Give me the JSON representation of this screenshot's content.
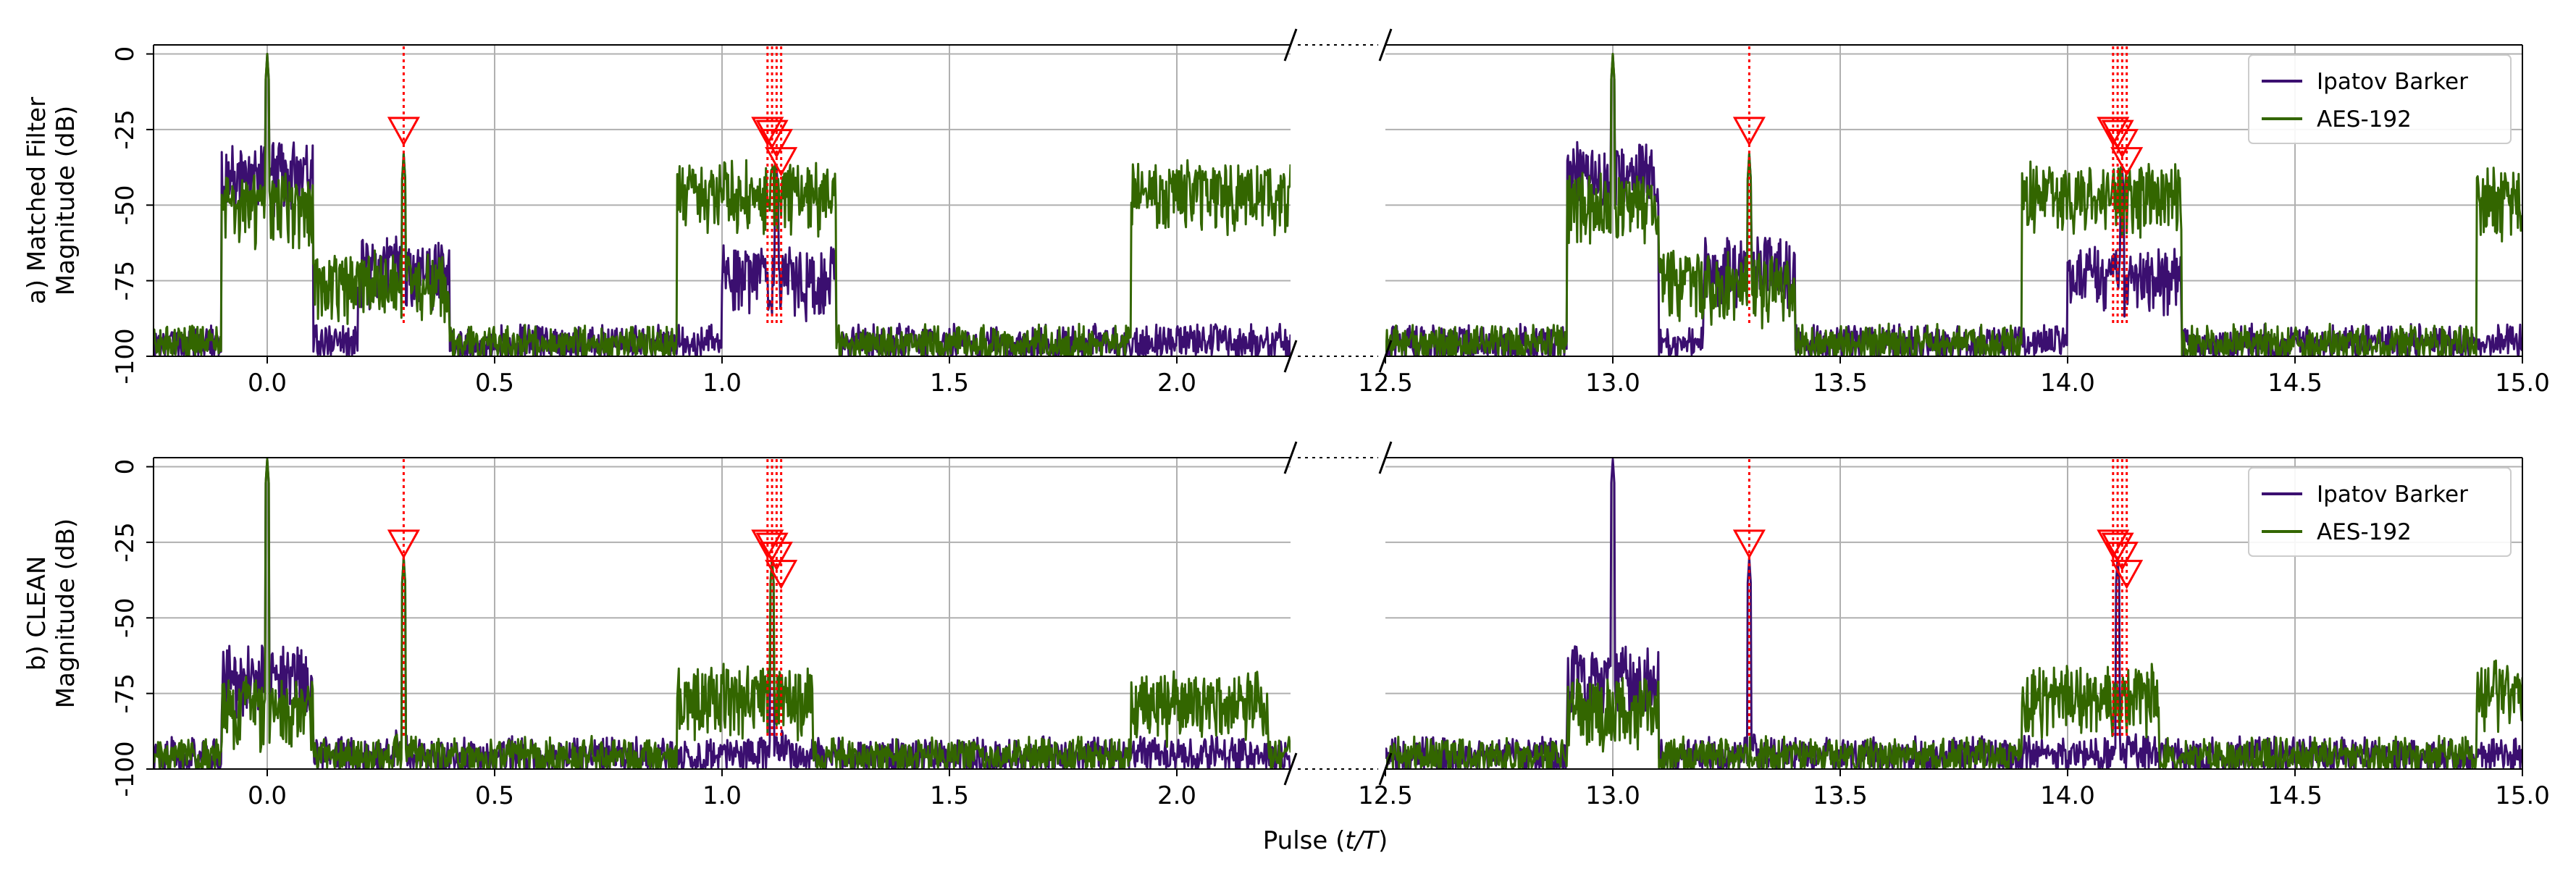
{
  "colors": {
    "ipatov": "#3b0f70",
    "aes": "#336600",
    "marker": "#ff0000",
    "grid": "#b0b0b0"
  },
  "figure": {
    "xlabel_prefix": "Pulse (",
    "xlabel_math": "t/T",
    "xlabel_suffix": ")"
  },
  "panels": [
    {
      "ylabel_line1": "a)  Matched Filter",
      "ylabel_line2": "Magnitude (dB)",
      "legend": [
        "Ipatov Barker",
        "AES-192"
      ]
    },
    {
      "ylabel_line1": "b)  CLEAN",
      "ylabel_line2": "Magnitude (dB)",
      "legend": [
        "Ipatov Barker",
        "AES-192"
      ]
    }
  ],
  "chart_data": [
    {
      "type": "line",
      "title": "",
      "xlabel": "Pulse (t/T)",
      "ylabel": "a)  Matched Filter Magnitude (dB)",
      "broken_x_axis": true,
      "xlim_segments": [
        [
          -0.25,
          2.25
        ],
        [
          12.5,
          15.0
        ]
      ],
      "xticks_left": [
        "0.0",
        "0.5",
        "1.0",
        "1.5",
        "2.0"
      ],
      "xticks_right": [
        "12.5",
        "13.0",
        "13.5",
        "14.0",
        "14.5",
        "15.0"
      ],
      "ylim": [
        -100,
        3
      ],
      "yticks": [
        "0",
        "-25",
        "-50",
        "-75",
        "-100"
      ],
      "grid": true,
      "legend_position": "top-right",
      "series": [
        {
          "name": "Ipatov Barker",
          "color": "#3b0f70",
          "features": [
            {
              "x_range": [
                -0.1,
                0.1
              ],
              "level": -32,
              "peak_x": 0.0,
              "peak_db": 0
            },
            {
              "x_range": [
                0.2,
                0.4
              ],
              "level": -63,
              "peak_x": 0.3,
              "peak_db": -33
            },
            {
              "x_range": [
                1.0,
                1.25
              ],
              "level": -66,
              "peak_x": 1.12,
              "peak_db": -38
            },
            {
              "x_range": [
                12.9,
                13.1
              ],
              "level": -32,
              "peak_x": 13.0,
              "peak_db": 0
            },
            {
              "x_range": [
                13.2,
                13.4
              ],
              "level": -63,
              "peak_x": 13.3,
              "peak_db": -33
            },
            {
              "x_range": [
                14.0,
                14.25
              ],
              "level": -66,
              "peak_x": 14.12,
              "peak_db": -38
            }
          ],
          "noise_floor_db": -92
        },
        {
          "name": "AES-192",
          "color": "#336600",
          "features": [
            {
              "x_range": [
                -0.1,
                0.1
              ],
              "level": -42,
              "peak_x": 0.0,
              "peak_db": 0
            },
            {
              "x_range": [
                0.1,
                0.4
              ],
              "level": -68,
              "peak_x": 0.3,
              "peak_db": -33
            },
            {
              "x_range": [
                0.9,
                1.25
              ],
              "level": -38
            },
            {
              "x_range": [
                1.9,
                2.25
              ],
              "level": -38
            },
            {
              "x_range": [
                12.9,
                13.1
              ],
              "level": -42,
              "peak_x": 13.0,
              "peak_db": 0
            },
            {
              "x_range": [
                13.1,
                13.4
              ],
              "level": -68,
              "peak_x": 13.3,
              "peak_db": -33
            },
            {
              "x_range": [
                13.9,
                14.25
              ],
              "level": -38
            },
            {
              "x_range": [
                14.9,
                15.0
              ],
              "level": -40
            }
          ],
          "noise_floor_db": -92
        }
      ],
      "markers": [
        {
          "x": 0.3,
          "y": -25
        },
        {
          "x": 1.1,
          "y": -25
        },
        {
          "x": 1.11,
          "y": -26
        },
        {
          "x": 1.12,
          "y": -29
        },
        {
          "x": 1.13,
          "y": -35
        },
        {
          "x": 13.3,
          "y": -25
        },
        {
          "x": 14.1,
          "y": -25
        },
        {
          "x": 14.11,
          "y": -26
        },
        {
          "x": 14.12,
          "y": -29
        },
        {
          "x": 14.13,
          "y": -35
        }
      ]
    },
    {
      "type": "line",
      "title": "",
      "xlabel": "Pulse (t/T)",
      "ylabel": "b)  CLEAN Magnitude (dB)",
      "broken_x_axis": true,
      "xlim_segments": [
        [
          -0.25,
          2.25
        ],
        [
          12.5,
          15.0
        ]
      ],
      "xticks_left": [
        "0.0",
        "0.5",
        "1.0",
        "1.5",
        "2.0"
      ],
      "xticks_right": [
        "12.5",
        "13.0",
        "13.5",
        "14.0",
        "14.5",
        "15.0"
      ],
      "ylim": [
        -100,
        3
      ],
      "yticks": [
        "0",
        "-25",
        "-50",
        "-75",
        "-100"
      ],
      "grid": true,
      "legend_position": "top-right",
      "series": [
        {
          "name": "Ipatov Barker",
          "color": "#3b0f70",
          "features": [
            {
              "x_range": [
                -0.1,
                0.1
              ],
              "level": -62,
              "peak_x": 0.0,
              "peak_db": 3
            },
            {
              "x_range": [
                0.28,
                0.32
              ],
              "level": -90,
              "peak_x": 0.3,
              "peak_db": -30
            },
            {
              "x_range": [
                1.08,
                1.15
              ],
              "level": -90,
              "peak_x": 1.11,
              "peak_db": -30
            },
            {
              "x_range": [
                12.9,
                13.1
              ],
              "level": -62,
              "peak_x": 13.0,
              "peak_db": 3
            },
            {
              "x_range": [
                13.28,
                13.32
              ],
              "level": -90,
              "peak_x": 13.3,
              "peak_db": -30
            },
            {
              "x_range": [
                14.08,
                14.15
              ],
              "level": -90,
              "peak_x": 14.11,
              "peak_db": -30
            }
          ],
          "noise_floor_db": -92
        },
        {
          "name": "AES-192",
          "color": "#336600",
          "features": [
            {
              "x_range": [
                -0.1,
                0.1
              ],
              "level": -72,
              "peak_x": 0.0,
              "peak_db": 3
            },
            {
              "x_range": [
                0.28,
                0.32
              ],
              "level": -90,
              "peak_x": 0.3,
              "peak_db": -30
            },
            {
              "x_range": [
                0.9,
                1.2
              ],
              "level": -68,
              "peak_x": 1.11,
              "peak_db": -30
            },
            {
              "x_range": [
                1.9,
                2.2
              ],
              "level": -70
            },
            {
              "x_range": [
                12.9,
                13.1
              ],
              "level": -72
            },
            {
              "x_range": [
                13.9,
                14.2
              ],
              "level": -68
            },
            {
              "x_range": [
                14.9,
                15.0
              ],
              "level": -66
            }
          ],
          "noise_floor_db": -92
        }
      ],
      "markers": [
        {
          "x": 0.3,
          "y": -25
        },
        {
          "x": 1.1,
          "y": -25
        },
        {
          "x": 1.11,
          "y": -26
        },
        {
          "x": 1.12,
          "y": -29
        },
        {
          "x": 1.13,
          "y": -35
        },
        {
          "x": 13.3,
          "y": -25
        },
        {
          "x": 14.1,
          "y": -25
        },
        {
          "x": 14.11,
          "y": -26
        },
        {
          "x": 14.12,
          "y": -29
        },
        {
          "x": 14.13,
          "y": -35
        }
      ]
    }
  ]
}
